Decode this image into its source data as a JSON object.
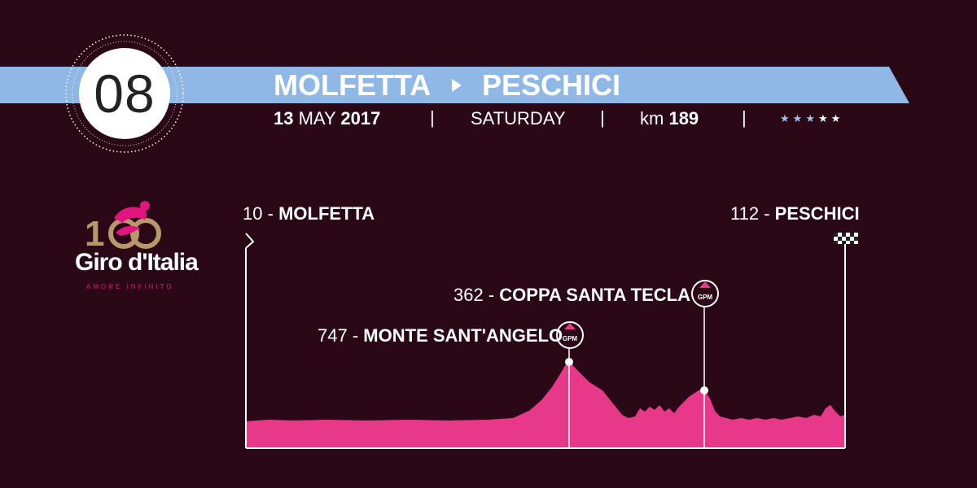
{
  "stage": {
    "number": "08",
    "from": "MOLFETTA",
    "to": "PESCHICI",
    "day": "13",
    "month": "MAY",
    "year": "2017",
    "weekday": "SATURDAY",
    "km_label": "km",
    "km_value": "189",
    "separator": "|",
    "difficulty": {
      "filled": 3,
      "total": 5,
      "filled_color": "#9cc2ef",
      "empty_color": "#ffffff"
    }
  },
  "logo": {
    "number": "100",
    "title": "Giro d'Italia",
    "tagline": "AMORE INFINITO"
  },
  "profile": {
    "start": {
      "altitude": "10",
      "dash": "-",
      "name": "MOLFETTA"
    },
    "finish": {
      "altitude": "112",
      "dash": "-",
      "name": "PESCHICI"
    },
    "climbs": [
      {
        "altitude": "747",
        "dash": "-",
        "name": "MONTE SANT'ANGELO",
        "badge": "GPM"
      },
      {
        "altitude": "362",
        "dash": "-",
        "name": "COPPA SANTA TECLA",
        "badge": "GPM"
      }
    ]
  },
  "colors": {
    "background": "#2b0816",
    "banner": "#8fb8e6",
    "profile_fill": "#e8388a",
    "accent_pink": "#e0167e",
    "logo_gold": "#b8976b"
  },
  "icons": {
    "start": "start-arrow-icon",
    "finish": "checkered-flag-icon",
    "climb": "gpm-badge-icon"
  }
}
